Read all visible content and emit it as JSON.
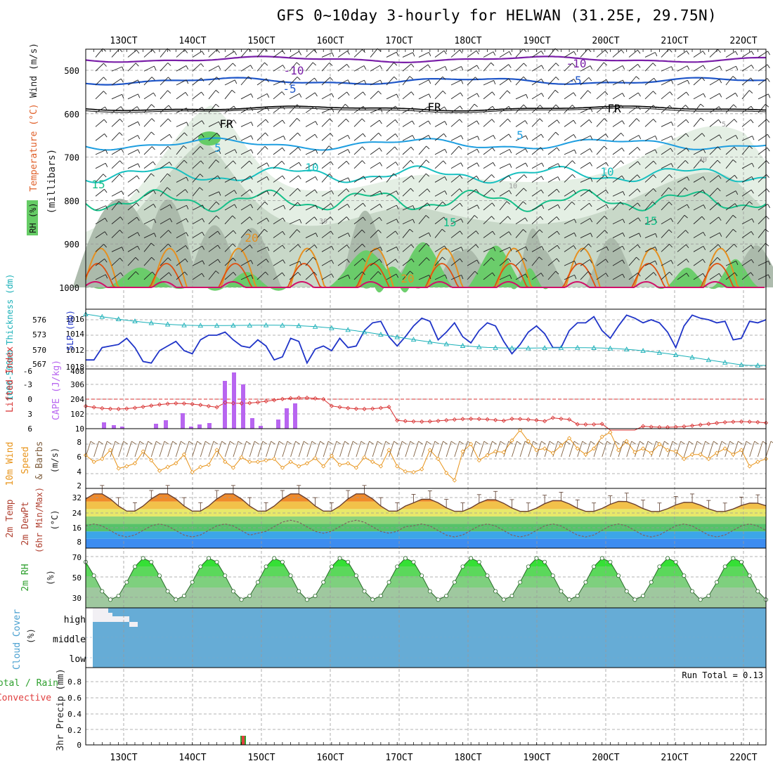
{
  "title": "GFS 0~10day 3-hourly for HELWAN (31.25E, 29.75N)",
  "colors": {
    "grid": "#9a9a9a",
    "temp_cold": "#7a1fa8",
    "temp_m5": "#1f56c8",
    "freezing": "#000000",
    "temp_5": "#1e9ee0",
    "temp_10": "#18c0c0",
    "temp_15": "#16c08a",
    "temp_20": "#e69020",
    "temp_25": "#e05010",
    "temp_30": "#d0106a",
    "rh_light": "#e4efe4",
    "rh_mid": "#c8d8c8",
    "rh_dark": "#aab8aa",
    "rh_green": "#66cc66",
    "slp": "#1f34c8",
    "thickness": "#1ab0b8",
    "lifted": "#d83030",
    "cape": "#b866f0",
    "wind": "#e8941a",
    "barb": "#806040",
    "tmax_line": "#6b4030",
    "dew_line": "#806060",
    "rh2m": "#22dd22",
    "cloud": "#66acd6",
    "precip": "#e04040",
    "precip_green": "#2ea02e"
  },
  "x_axis": {
    "top_ticks": [
      "13OCT",
      "14OCT",
      "15OCT",
      "16OCT",
      "17OCT",
      "18OCT",
      "19OCT",
      "20OCT",
      "21OCT",
      "22OCT"
    ],
    "bottom_ticks": [
      "13OCT",
      "14OCT",
      "15OCT",
      "16OCT",
      "17OCT",
      "18OCT",
      "19OCT",
      "20OCT",
      "21OCT",
      "22OCT"
    ]
  },
  "panels": {
    "upper": {
      "ylabel_wind": "Wind (m/s)",
      "ylabel_temp": "Temperature (°C)",
      "ylabel_pressure": "(millibars)",
      "ylabel_rh": "RH (%)",
      "yticks": [
        "500",
        "600",
        "700",
        "800",
        "900",
        "1000"
      ],
      "contour_labels": [
        "-10",
        "-10",
        "-5",
        "-5",
        "FR",
        "FR",
        "FR",
        "5",
        "5",
        "10",
        "10",
        "15",
        "15",
        "15",
        "20",
        "20",
        "30",
        "30",
        "10",
        "5"
      ]
    },
    "slp": {
      "ylabel_thickness": "1000-500mb Thickness (dm)",
      "ylabel_slp": "SLP (mb)",
      "yticks_left": [
        "576",
        "573",
        "570",
        "567"
      ],
      "yticks_right": [
        "1016",
        "1014",
        "1012",
        "1018"
      ]
    },
    "cape": {
      "ylabel_li": "Lifted Index",
      "ylabel_cape": "CAPE (J/kg)",
      "yticks_left": [
        "-6",
        "-3",
        "0",
        "3",
        "6"
      ],
      "yticks_right": [
        "408",
        "306",
        "204",
        "102",
        "10"
      ]
    },
    "wind10": {
      "ylabel_a": "10m Wind",
      "ylabel_b": "Speed",
      "ylabel_c": "& Barbs",
      "ylabel_units": "(m/s)",
      "yticks": [
        "8",
        "6",
        "4",
        "2"
      ]
    },
    "temp2m": {
      "ylabel_a": "2m Temp",
      "ylabel_b": "2m DewPt",
      "ylabel_c": "(6hr Min/Max)",
      "ylabel_units": "(°C)",
      "yticks": [
        "32",
        "24",
        "16",
        "8"
      ]
    },
    "rh2m": {
      "ylabel": "2m RH",
      "ylabel_units": "(%)",
      "yticks": [
        "70",
        "50",
        "30"
      ]
    },
    "cloud": {
      "ylabel": "Cloud Cover",
      "ylabel_units": "(%)",
      "levels": [
        "high",
        "middle",
        "low"
      ]
    },
    "precip": {
      "ylabel_a": "Total / Rain",
      "ylabel_b": "Convective",
      "ylabel_c": "3hr Precip (mm)",
      "yticks": [
        "0.8",
        "0.6",
        "0.4",
        "0.2",
        "0"
      ],
      "run_total": "Run Total = 0.13"
    }
  },
  "chart_data": {
    "type": "line",
    "slp_mb": [
      1010.8,
      1010.8,
      1012.4,
      1012.6,
      1012.8,
      1013.6,
      1012.4,
      1010.6,
      1010.4,
      1012.0,
      1012.6,
      1013.2,
      1012.0,
      1011.6,
      1013.4,
      1014.0,
      1014.0,
      1014.4,
      1013.4,
      1012.6,
      1012.4,
      1013.4,
      1012.6,
      1010.8,
      1011.2,
      1013.6,
      1013.2,
      1010.4,
      1012.2,
      1012.6,
      1012.0,
      1013.6,
      1012.4,
      1012.6,
      1014.6,
      1015.6,
      1015.8,
      1013.8,
      1012.6,
      1013.8,
      1015.2,
      1016.2,
      1015.8,
      1013.4,
      1014.4,
      1015.6,
      1013.8,
      1013.0,
      1014.6,
      1015.6,
      1015.2,
      1013.2,
      1011.6,
      1012.8,
      1014.4,
      1015.2,
      1014.2,
      1012.4,
      1012.4,
      1014.6,
      1015.6,
      1015.6,
      1016.4,
      1014.6,
      1013.6,
      1015.2,
      1016.6,
      1016.2,
      1015.6,
      1016.0,
      1015.6,
      1014.4,
      1012.4,
      1015.2,
      1016.6,
      1016.2,
      1016.0,
      1015.6,
      1015.8,
      1013.4,
      1013.6,
      1015.8,
      1015.6,
      1016.0
    ]
  }
}
